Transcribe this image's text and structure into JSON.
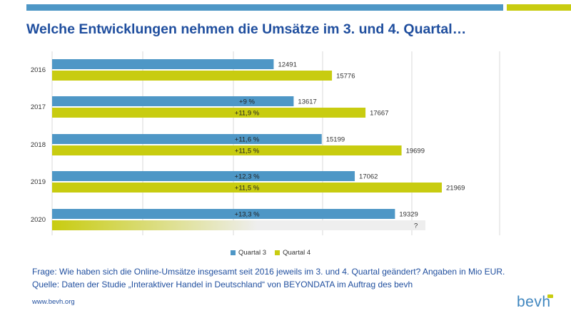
{
  "header": {
    "title": "Welche Entwicklungen nehmen die Umsätze im 3. und 4. Quartal…"
  },
  "colors": {
    "q3": "#4e97c6",
    "q4": "#c8cc10",
    "title": "#1f4e9e"
  },
  "chart_data": {
    "type": "bar",
    "orientation": "horizontal",
    "categories": [
      "2016",
      "2017",
      "2018",
      "2019",
      "2020"
    ],
    "series": [
      {
        "name": "Quartal 3",
        "values": [
          12491,
          13617,
          15199,
          17062,
          19329
        ],
        "value_labels": [
          "12491",
          "13617",
          "15199",
          "17062",
          "19329"
        ],
        "annotations": [
          "",
          "+9 %",
          "+11,6 %",
          "+12,3 %",
          "+13,3 %"
        ]
      },
      {
        "name": "Quartal 4",
        "values": [
          15776,
          17667,
          19699,
          21969,
          null
        ],
        "value_labels": [
          "15776",
          "17667",
          "19699",
          "21969",
          "?"
        ],
        "annotations": [
          "",
          "+11,9 %",
          "+11,5 %",
          "+11,5 %",
          ""
        ]
      }
    ],
    "legend_position": "bottom",
    "grid": true
  },
  "footnote": {
    "question": "Frage: Wie haben sich die Online-Umsätze insgesamt seit 2016 jeweils im 3. und 4. Quartal geändert? Angaben in Mio EUR.",
    "source": "Quelle: Daten der Studie „Interaktiver Handel in Deutschland“ von BEYONDATA im Auftrag des bevh"
  },
  "footer": {
    "url": "www.bevh.org",
    "logo_text": "bevh"
  }
}
